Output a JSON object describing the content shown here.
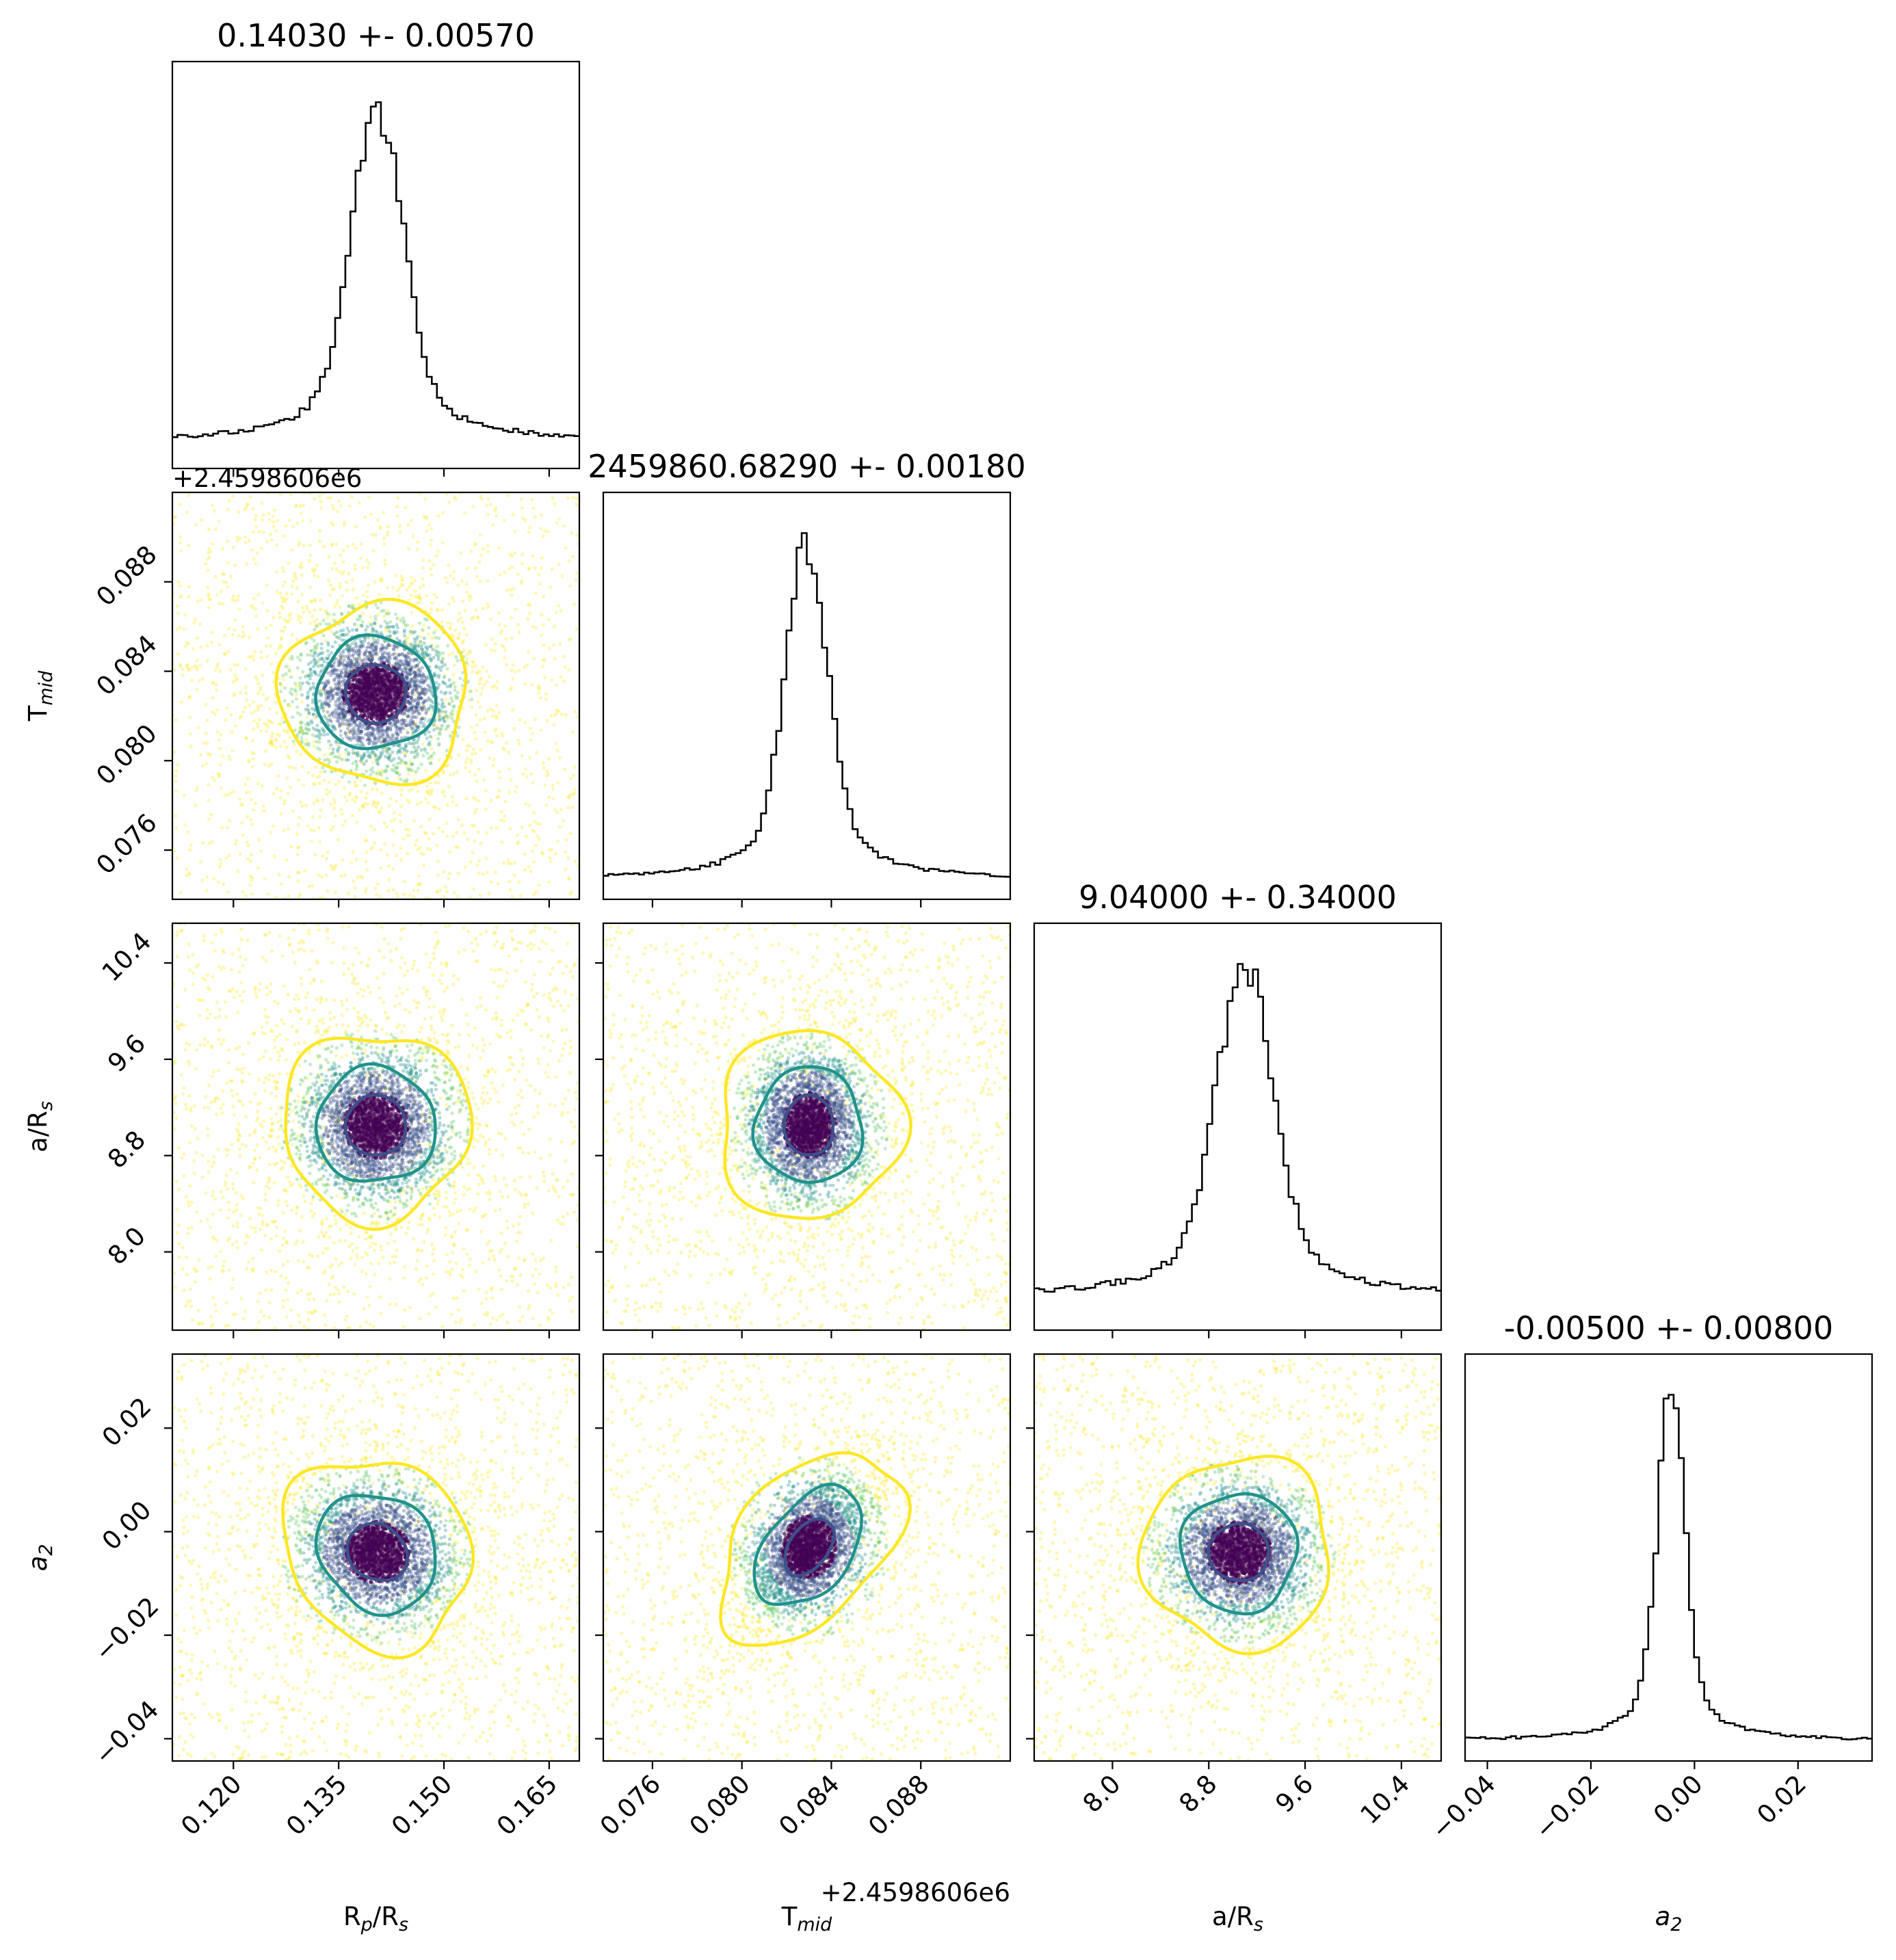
{
  "chart_data": {
    "type": "scatter",
    "kind": "corner-plot",
    "parameters": [
      {
        "key": "rprs",
        "label": "R",
        "sub": "p",
        "label2": "/R",
        "sub2": "s",
        "title": "0.14030 +- 0.00570",
        "center": 0.1403,
        "sigma": 0.0057,
        "range": [
          0.1113,
          0.1693
        ],
        "ticks": [
          0.12,
          0.135,
          0.15,
          0.165
        ],
        "tick_labels": [
          "0.120",
          "0.135",
          "0.150",
          "0.165"
        ]
      },
      {
        "key": "tmid",
        "label": "T",
        "sub": "mid",
        "label2": "",
        "sub2": "",
        "title": "2459860.68290 +- 0.00180",
        "center": 0.0829,
        "sigma": 0.0018,
        "range": [
          0.0738,
          0.092
        ],
        "ticks": [
          0.076,
          0.08,
          0.084,
          0.088
        ],
        "tick_labels": [
          "0.076",
          "0.080",
          "0.084",
          "0.088"
        ],
        "offset_text": "+2.4598606e6"
      },
      {
        "key": "ars",
        "label": "a/R",
        "sub": "s",
        "label2": "",
        "sub2": "",
        "title": "9.04000 +- 0.34000",
        "center": 9.04,
        "sigma": 0.34,
        "range": [
          7.35,
          10.73
        ],
        "ticks": [
          8.0,
          8.8,
          9.6,
          10.4
        ],
        "tick_labels": [
          "8.0",
          "8.8",
          "9.6",
          "10.4"
        ]
      },
      {
        "key": "a2",
        "label": "a",
        "sub": "2",
        "label2": "",
        "sub2": "",
        "italic": true,
        "title": "-0.00500 +- 0.00800",
        "center": -0.005,
        "sigma": 0.008,
        "range": [
          -0.0443,
          0.0343
        ],
        "ticks": [
          -0.04,
          -0.02,
          0.0,
          0.02
        ],
        "tick_labels": [
          "−0.04",
          "−0.02",
          "0.00",
          "0.02"
        ]
      }
    ],
    "histograms": [
      {
        "param": "rprs",
        "peak": 0.1405,
        "core_sigma": 0.0035,
        "wing_fraction": 0.08,
        "bins": 80
      },
      {
        "param": "tmid",
        "peak": 0.0829,
        "core_sigma": 0.0009,
        "wing_fraction": 0.06,
        "bins": 80
      },
      {
        "param": "ars",
        "peak": 9.1,
        "core_sigma": 0.22,
        "wing_fraction": 0.1,
        "bins": 80
      },
      {
        "param": "a2",
        "peak": -0.0045,
        "core_sigma": 0.0025,
        "wing_fraction": 0.06,
        "bins": 80
      }
    ],
    "contours": {
      "levels": [
        "1-sigma",
        "2-sigma",
        "3-sigma"
      ],
      "colors": [
        "#3b528b",
        "#21918c",
        "#fde725"
      ],
      "point_colors": [
        "#440154",
        "#3b528b",
        "#21918c",
        "#5ec962",
        "#fde725"
      ],
      "pairs": [
        {
          "x": "rprs",
          "y": "tmid",
          "sigma_x": [
            0.0043,
            0.0085,
            0.0133
          ],
          "sigma_y": [
            0.0013,
            0.0025,
            0.004
          ],
          "center": [
            0.1403,
            0.083
          ],
          "rho": 0.0
        },
        {
          "x": "rprs",
          "y": "ars",
          "sigma_x": [
            0.0043,
            0.0085,
            0.0133
          ],
          "sigma_y": [
            0.25,
            0.48,
            0.78
          ],
          "center": [
            0.1403,
            9.05
          ],
          "rho": 0.0
        },
        {
          "x": "tmid",
          "y": "ars",
          "sigma_x": [
            0.0011,
            0.0024,
            0.0041
          ],
          "sigma_y": [
            0.25,
            0.48,
            0.78
          ],
          "center": [
            0.083,
            9.05
          ],
          "rho": 0.0
        },
        {
          "x": "rprs",
          "y": "a2",
          "sigma_x": [
            0.0043,
            0.0085,
            0.0133
          ],
          "sigma_y": [
            0.0055,
            0.0115,
            0.0185
          ],
          "center": [
            0.1405,
            -0.004
          ],
          "rho": -0.15
        },
        {
          "x": "tmid",
          "y": "a2",
          "sigma_x": [
            0.0011,
            0.0024,
            0.0041
          ],
          "sigma_y": [
            0.0055,
            0.0115,
            0.0185
          ],
          "center": [
            0.083,
            -0.003
          ],
          "rho": 0.45
        },
        {
          "x": "ars",
          "y": "a2",
          "sigma_x": [
            0.25,
            0.48,
            0.78
          ],
          "sigma_y": [
            0.0055,
            0.0115,
            0.0185
          ],
          "center": [
            9.05,
            -0.004
          ],
          "rho": 0.0
        }
      ]
    },
    "grid": false,
    "legend": "none"
  }
}
